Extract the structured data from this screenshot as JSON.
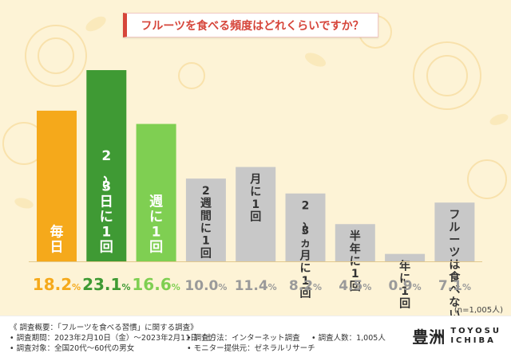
{
  "title": "フルーツを食べる頻度はどれくらいですか？",
  "chart_data": {
    "type": "bar",
    "categories": [
      "毎日",
      "2〜3日に1回",
      "週に1回",
      "2週間に1回",
      "月に1回",
      "2〜3ヵ月に1回",
      "半年に1回",
      "年に1回",
      "フルーツは食べない"
    ],
    "values": [
      18.2,
      23.1,
      16.6,
      10.0,
      11.4,
      8.2,
      4.5,
      0.9,
      7.1
    ],
    "value_labels": [
      "18.2%",
      "23.1%",
      "16.6%",
      "10.0%",
      "11.4%",
      "8.2%",
      "4.5%",
      "0.9%",
      "7.1%"
    ],
    "ylim": [
      0,
      23.1
    ],
    "colors": [
      "#f5a91b",
      "#3f9a34",
      "#7fcf52",
      "#c8c8c8",
      "#c8c8c8",
      "#c8c8c8",
      "#c8c8c8",
      "#c8c8c8",
      "#c8c8c8"
    ],
    "label_colors": [
      "#f5a91b",
      "#3f9a34",
      "#7fcf52",
      "#9a9a9a",
      "#9a9a9a",
      "#9a9a9a",
      "#9a9a9a",
      "#9a9a9a",
      "#9a9a9a"
    ]
  },
  "sample_size": "(n=1,005人)",
  "footer": {
    "col1": [
      "《 調査概要：「フルーツを食べる習慣」に関する調査》",
      "• 調査期間：2023年2月10日（金）〜2023年2月11日（土）",
      "• 調査対象：全国20代〜60代の男女"
    ],
    "col2": [
      "• 調査方法：インターネット調査",
      "• モニター提供元：ゼネラルリサーチ"
    ],
    "col3": [
      "• 調査人数：1,005人"
    ],
    "logo_kanji": "豊洲",
    "logo_latin_1": "TOYOSU",
    "logo_latin_2": "ICHIBA"
  }
}
